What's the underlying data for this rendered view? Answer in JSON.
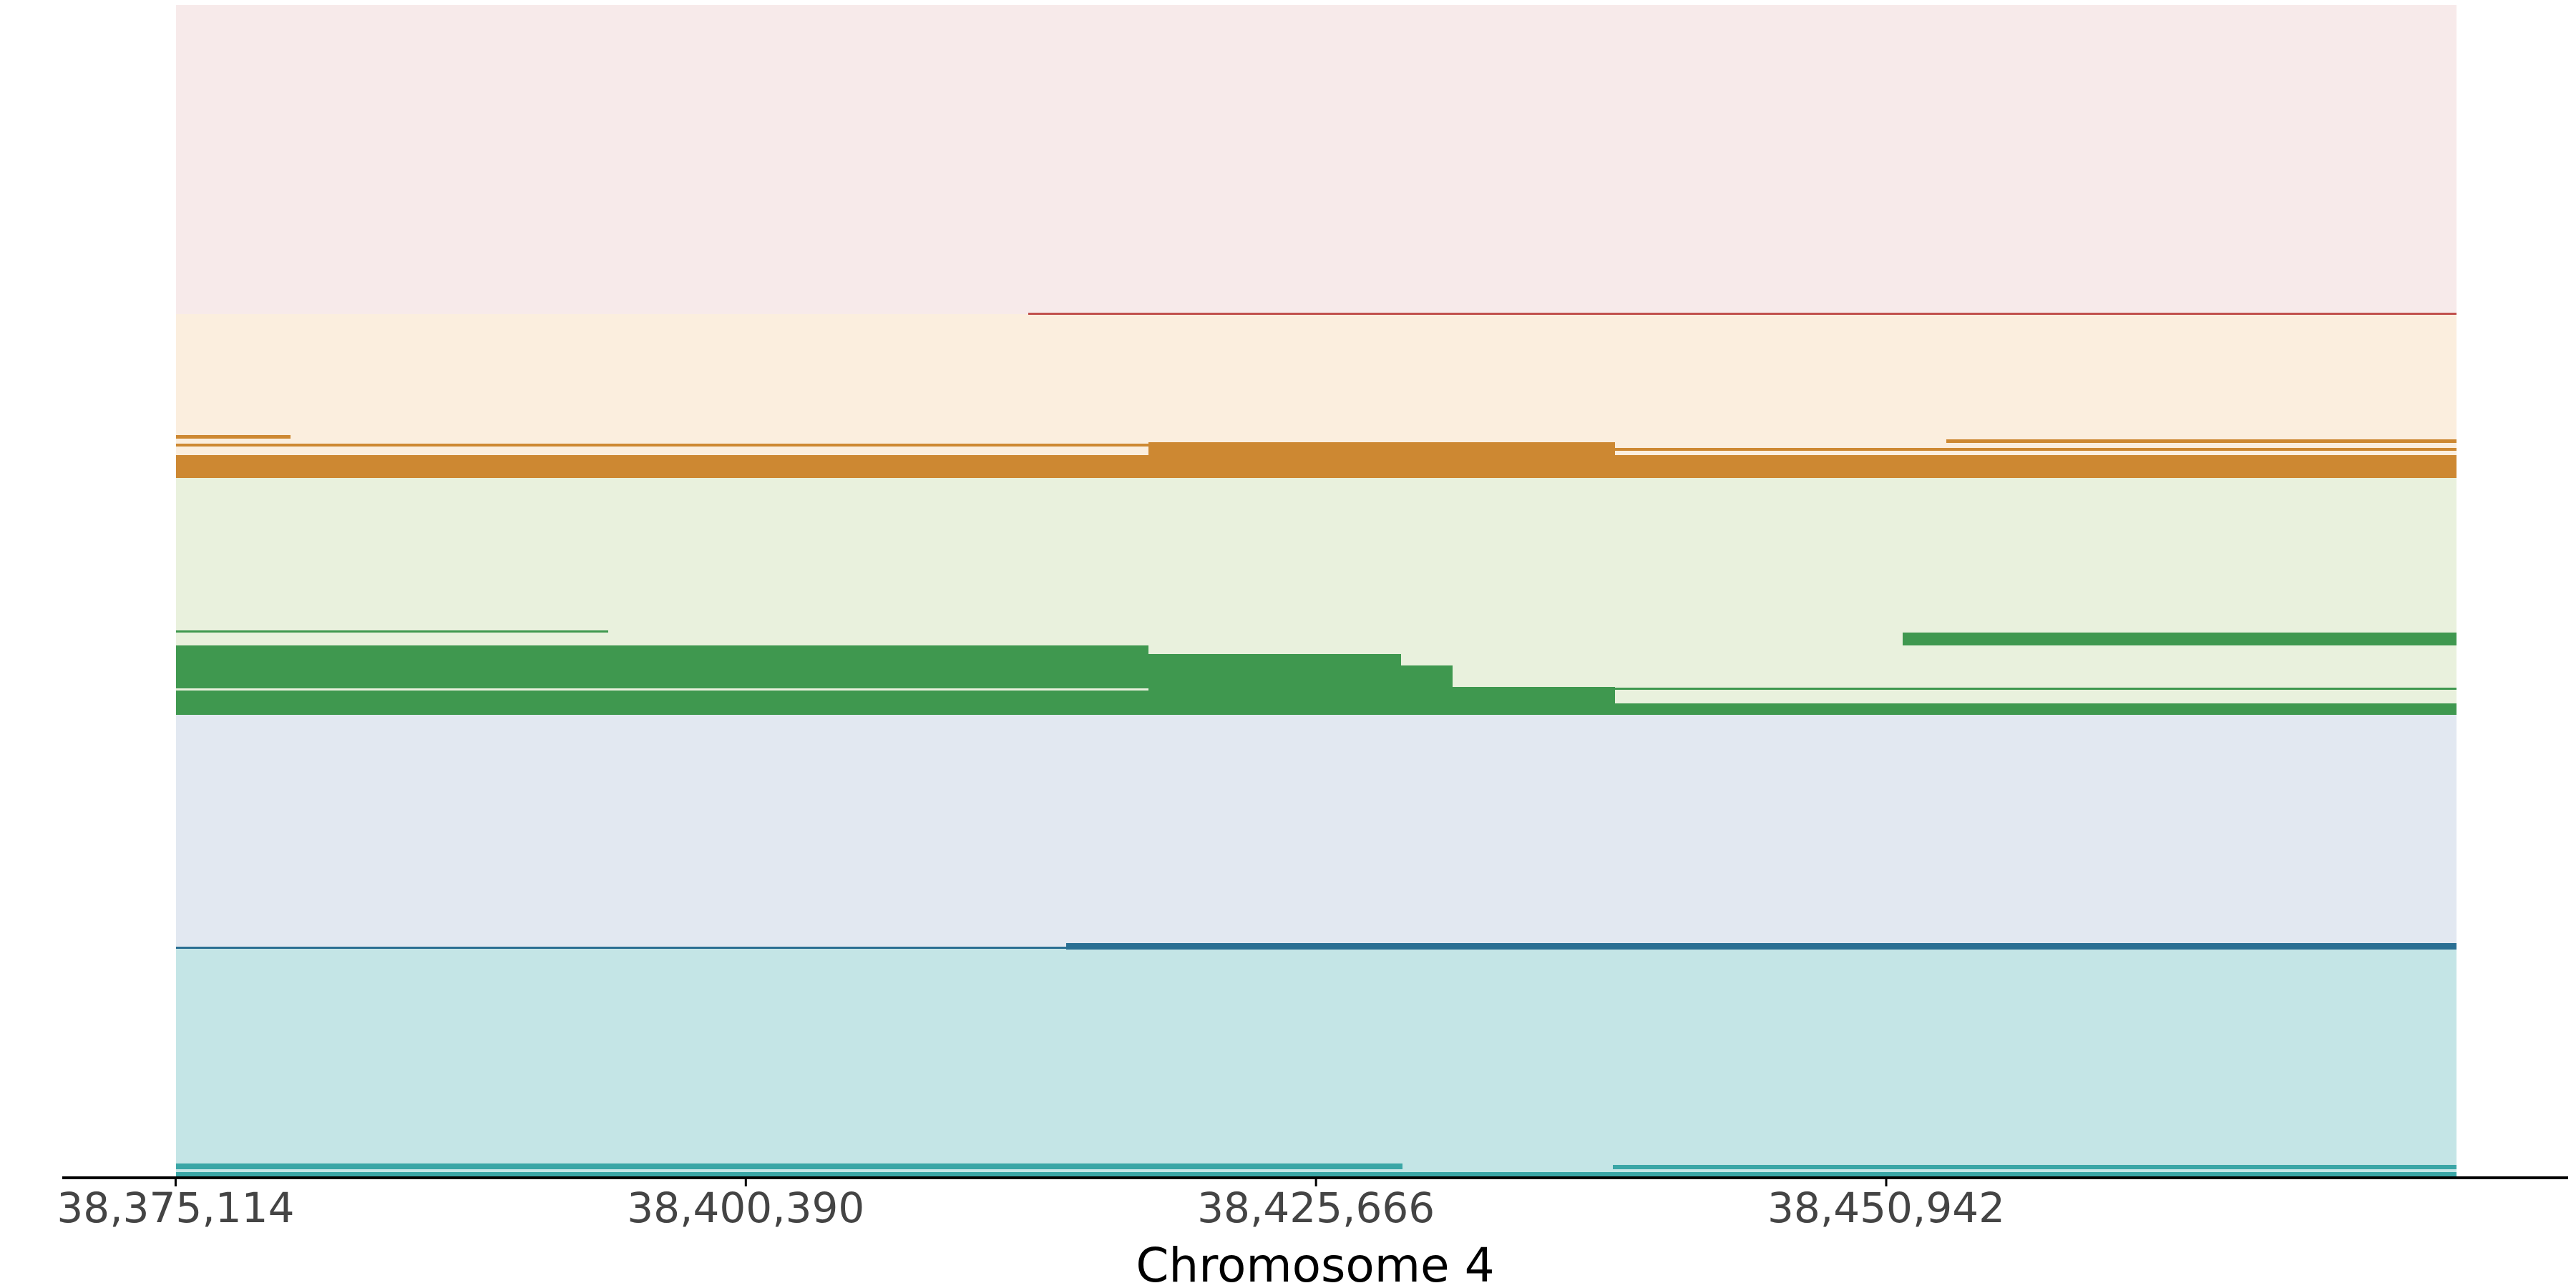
{
  "chart_data": {
    "type": "track",
    "x_label": "Chromosome 4",
    "xlim": [
      38370088,
      38481171
    ],
    "xticks": [
      {
        "value": 38375114,
        "label": "38,375,114"
      },
      {
        "value": 38400390,
        "label": "38,400,390"
      },
      {
        "value": 38425666,
        "label": "38,425,666"
      },
      {
        "value": 38450942,
        "label": "38,450,942"
      }
    ]
  }
}
